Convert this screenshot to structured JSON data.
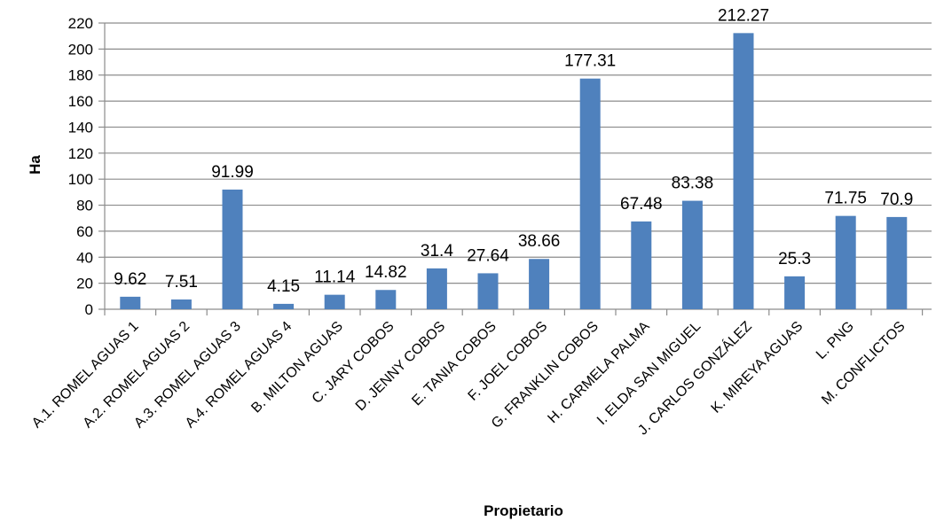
{
  "chart_data": {
    "type": "bar",
    "title": "",
    "xlabel": "Propietario",
    "ylabel": "Ha",
    "ylim": [
      0,
      220
    ],
    "ytick_step": 20,
    "grid": true,
    "legend": "none",
    "bar_color": "#4f81bd",
    "categories": [
      "A.1. ROMEL AGUAS 1",
      "A.2. ROMEL AGUAS 2",
      "A.3. ROMEL AGUAS 3",
      "A.4. ROMEL AGUAS 4",
      "B. MILTON AGUAS",
      "C. JARY COBOS",
      "D. JENNY COBOS",
      "E. TANIA COBOS",
      "F. JOEL COBOS",
      "G. FRANKLIN COBOS",
      "H. CARMELA PALMA",
      "I. ELDA SAN MIGUEL",
      "J. CARLOS GONZÁLEZ",
      "K. MIREYA AGUAS",
      "L. PNG",
      "M. CONFLICTOS"
    ],
    "values": [
      9.62,
      7.51,
      91.99,
      4.15,
      11.14,
      14.82,
      31.4,
      27.64,
      38.66,
      177.31,
      67.48,
      83.38,
      212.27,
      25.3,
      71.75,
      70.9
    ],
    "data_labels": [
      "9.62",
      "7.51",
      "91.99",
      "4.15",
      "11.14",
      "14.82",
      "31.4",
      "27.64",
      "38.66",
      "177.31",
      "67.48",
      "83.38",
      "212.27",
      "25.3",
      "71.75",
      "70.9"
    ]
  }
}
